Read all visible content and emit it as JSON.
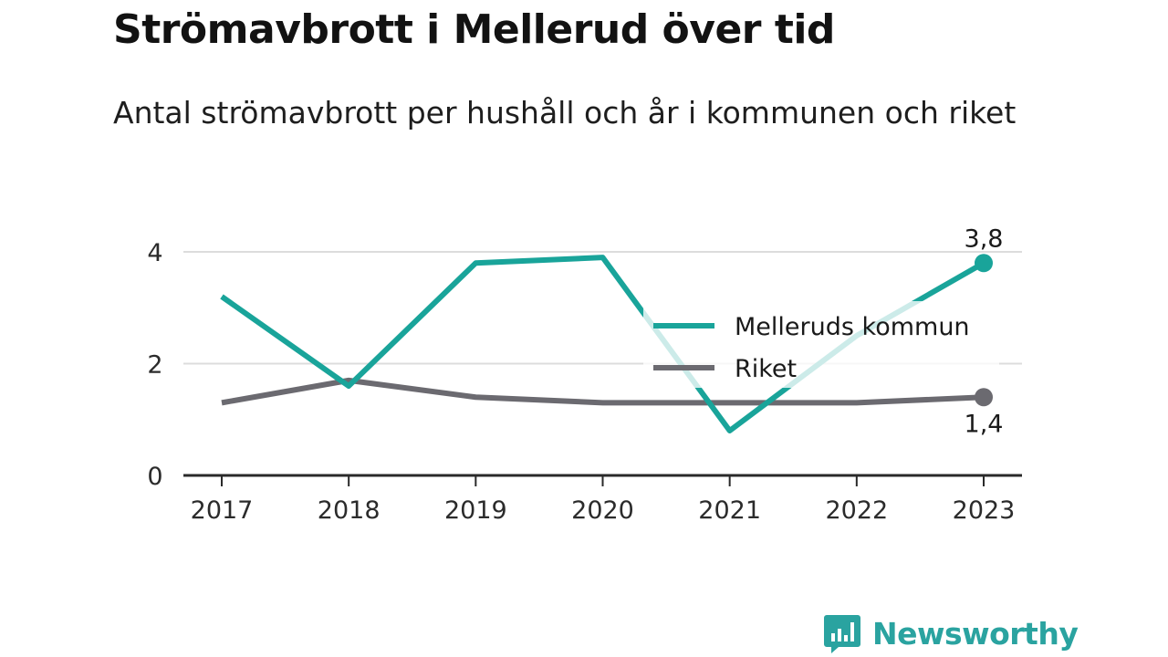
{
  "title": "Strömavbrott i Mellerud över tid",
  "subtitle": "Antal strömavbrott per hushåll och år i kommunen och riket",
  "brand": {
    "name": "Newsworthy",
    "icon": "bar-chart-speech-bubble-icon"
  },
  "colors": {
    "kommun": "#19a49a",
    "riket": "#6b6a70",
    "grid": "#dcdcdc",
    "axis": "#2a2a2a",
    "brand": "#2aa3a0"
  },
  "chart_data": {
    "type": "line",
    "title": "Strömavbrott i Mellerud över tid",
    "subtitle": "Antal strömavbrott per hushåll och år i kommunen och riket",
    "xlabel": "",
    "ylabel": "",
    "x": [
      "2017",
      "2018",
      "2019",
      "2020",
      "2021",
      "2022",
      "2023"
    ],
    "ylim": [
      0,
      4
    ],
    "yticks": [
      "0",
      "2",
      "4"
    ],
    "grid": "horizontal",
    "legend_position": "right",
    "series": [
      {
        "name": "Melleruds kommun",
        "values": [
          3.2,
          1.6,
          3.8,
          3.9,
          0.8,
          2.5,
          3.8
        ],
        "end_label": "3,8"
      },
      {
        "name": "Riket",
        "values": [
          1.3,
          1.7,
          1.4,
          1.3,
          1.3,
          1.3,
          1.4
        ],
        "end_label": "1,4"
      }
    ]
  }
}
